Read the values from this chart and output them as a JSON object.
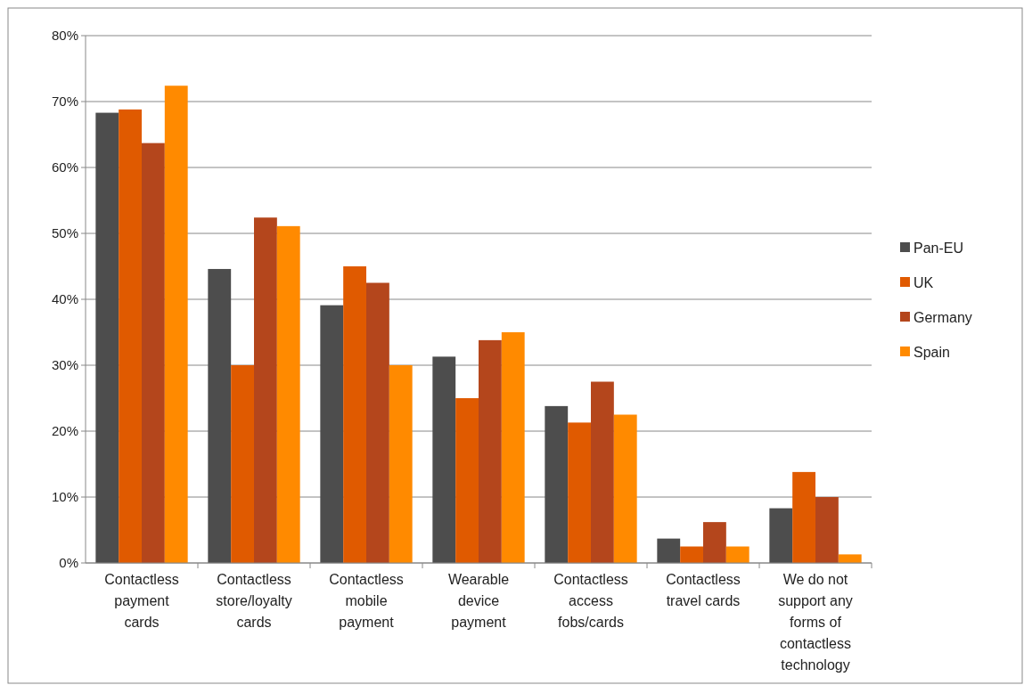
{
  "chart_data": {
    "type": "bar",
    "categories": [
      "Contactless payment cards",
      "Contactless store/loyalty cards",
      "Contactless mobile payment",
      "Wearable device payment",
      "Contactless access fobs/cards",
      "Contactless travel cards",
      "We do not support any forms of contactless technology"
    ],
    "series": [
      {
        "name": "Pan-EU",
        "color": "#4d4d4d",
        "values": [
          68.3,
          44.6,
          39.1,
          31.3,
          23.8,
          3.7,
          8.3
        ]
      },
      {
        "name": "UK",
        "color": "#e05a00",
        "values": [
          68.8,
          30,
          45,
          25,
          21.3,
          2.5,
          13.8
        ]
      },
      {
        "name": "Germany",
        "color": "#b4461c",
        "values": [
          63.7,
          52.4,
          42.5,
          33.8,
          27.5,
          6.2,
          10
        ]
      },
      {
        "name": "Spain",
        "color": "#ff8a00",
        "values": [
          72.4,
          51.1,
          30,
          35,
          22.5,
          2.5,
          1.3
        ]
      }
    ],
    "ylim": [
      0,
      80
    ],
    "yticks": [
      {
        "value": 0,
        "label": "0%"
      },
      {
        "value": 10,
        "label": "10%"
      },
      {
        "value": 20,
        "label": "20%"
      },
      {
        "value": 30,
        "label": "30%"
      },
      {
        "value": 40,
        "label": "40%"
      },
      {
        "value": 50,
        "label": "50%"
      },
      {
        "value": 60,
        "label": "60%"
      },
      {
        "value": 70,
        "label": "70%"
      },
      {
        "value": 80,
        "label": "80%"
      }
    ],
    "grid": "y",
    "legend": "right"
  }
}
